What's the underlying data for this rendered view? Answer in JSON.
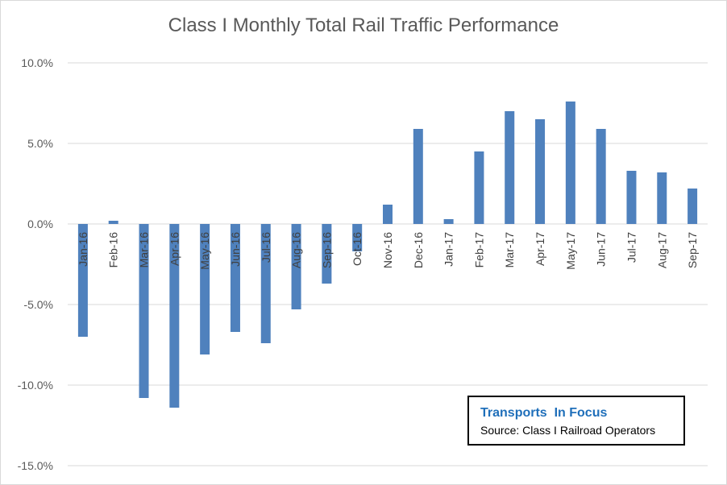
{
  "chart_data": {
    "type": "bar",
    "title": "Class I Monthly Total Rail Traffic Performance",
    "xlabel": "",
    "ylabel": "",
    "categories": [
      "Jan-16",
      "Feb-16",
      "Mar-16",
      "Apr-16",
      "May-16",
      "Jun-16",
      "Jul-16",
      "Aug-16",
      "Sep-16",
      "Oct-16",
      "Nov-16",
      "Dec-16",
      "Jan-17",
      "Feb-17",
      "Mar-17",
      "Apr-17",
      "May-17",
      "Jun-17",
      "Jul-17",
      "Aug-17",
      "Sep-17"
    ],
    "values": [
      -7.0,
      0.2,
      -10.8,
      -11.4,
      -8.1,
      -6.7,
      -7.4,
      -5.3,
      -3.7,
      -1.7,
      1.2,
      5.9,
      0.3,
      4.5,
      7.0,
      6.5,
      7.6,
      5.9,
      3.3,
      3.2,
      2.2
    ],
    "ylim": [
      -15,
      10
    ],
    "yticks": [
      10,
      5,
      0,
      -5,
      -10,
      -15
    ],
    "ytick_labels": [
      "10.0%",
      "5.0%",
      "0.0%",
      "-5.0%",
      "-10.0%",
      "-15.0%"
    ],
    "grid": true,
    "bar_color": "#4f81bd",
    "legend": "none"
  },
  "annotation": {
    "brand": "Transports  In Focus",
    "source": "Source: Class I Railroad Operators",
    "brand_color": "#1f6fba"
  }
}
